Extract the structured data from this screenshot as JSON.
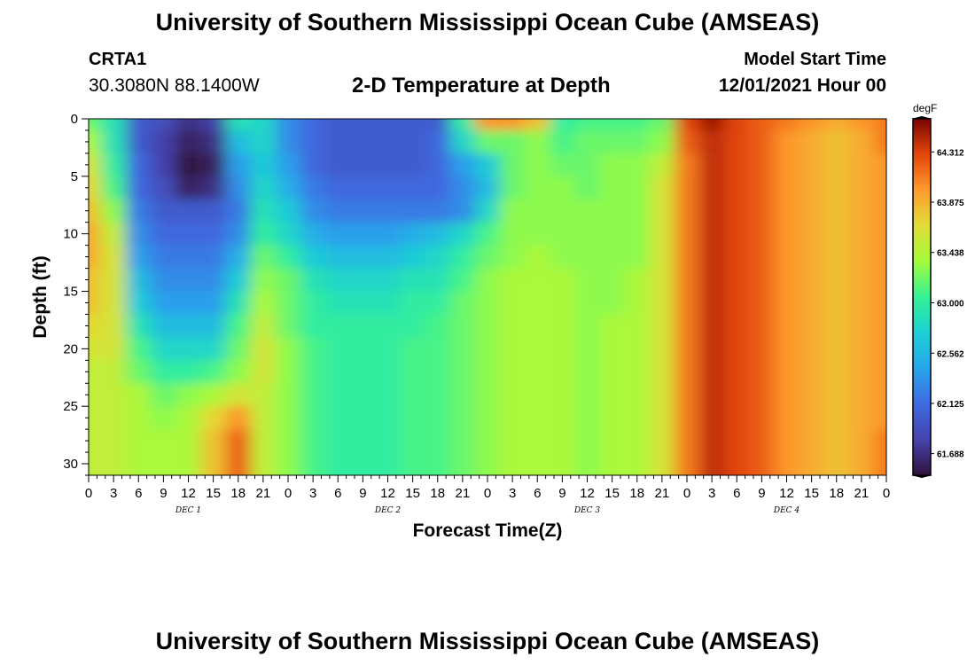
{
  "header": {
    "title": "University of Southern Mississippi Ocean Cube (AMSEAS)",
    "station_id": "CRTA1",
    "station_coords": "30.3080N  88.1400W",
    "subtitle": "2-D Temperature at Depth",
    "start_label": "Model Start Time",
    "start_value": "12/01/2021 Hour 00"
  },
  "footer": {
    "title": "University of Southern Mississippi Ocean Cube (AMSEAS)"
  },
  "chart_data": {
    "type": "heatmap",
    "title": "2-D Temperature at Depth",
    "xlabel": "Forecast Time(Z)",
    "ylabel": "Depth (ft)",
    "x_hours": [
      0,
      3,
      6,
      9,
      12,
      15,
      18,
      21,
      24,
      27,
      30,
      33,
      36,
      39,
      42,
      45,
      48,
      51,
      54,
      57,
      60,
      63,
      66,
      69,
      72,
      75,
      78,
      81,
      84,
      87,
      90,
      93,
      96
    ],
    "x_tick_labels": [
      "0",
      "3",
      "6",
      "9",
      "12",
      "15",
      "18",
      "21",
      "0",
      "3",
      "6",
      "9",
      "12",
      "15",
      "18",
      "21",
      "0",
      "3",
      "6",
      "9",
      "12",
      "15",
      "18",
      "21",
      "0",
      "3",
      "6",
      "9",
      "12",
      "15",
      "18",
      "21",
      "0"
    ],
    "day_labels": [
      {
        "text": "DEC 1",
        "hour": 12
      },
      {
        "text": "DEC 2",
        "hour": 36
      },
      {
        "text": "DEC 3",
        "hour": 60
      },
      {
        "text": "DEC 4",
        "hour": 84
      }
    ],
    "y_depths_ft": [
      0,
      2,
      4,
      6,
      8,
      10,
      12,
      14,
      16,
      18,
      20,
      22,
      24,
      26,
      28,
      30
    ],
    "y_ticks": [
      0,
      5,
      10,
      15,
      20,
      25,
      30
    ],
    "ylim": [
      31,
      0
    ],
    "xlim": [
      0,
      96
    ],
    "colorbar": {
      "unit": "degF",
      "ticks": [
        61.688,
        62.125,
        62.562,
        63.0,
        63.438,
        63.875,
        64.312
      ],
      "tick_labels": [
        "61.688",
        "62.125",
        "62.562",
        "63.000",
        "63.438",
        "63.875",
        "64.312"
      ],
      "range": [
        61.5,
        64.6
      ]
    },
    "temperature_degF": [
      [
        63.2,
        62.9,
        62.0,
        61.9,
        61.7,
        61.8,
        62.9,
        62.8,
        62.3,
        62.1,
        62.0,
        62.0,
        62.0,
        62.0,
        62.0,
        63.0,
        64.0,
        64.0,
        63.8,
        63.0,
        63.1,
        63.1,
        63.1,
        63.2,
        64.3,
        64.5,
        64.3,
        64.2,
        64.1,
        64.0,
        63.9,
        64.0,
        64.1
      ],
      [
        63.4,
        62.9,
        62.0,
        61.8,
        61.6,
        61.7,
        62.6,
        62.8,
        62.3,
        62.1,
        62.0,
        62.0,
        62.0,
        62.0,
        62.1,
        62.8,
        63.2,
        63.2,
        63.3,
        63.1,
        63.2,
        63.2,
        63.2,
        63.3,
        64.2,
        64.4,
        64.3,
        64.2,
        64.0,
        63.9,
        63.8,
        63.9,
        64.1
      ],
      [
        63.6,
        63.0,
        62.1,
        61.8,
        61.5,
        61.6,
        62.4,
        62.7,
        62.4,
        62.1,
        62.0,
        62.0,
        62.0,
        62.0,
        62.1,
        62.4,
        62.7,
        63.2,
        63.3,
        63.2,
        63.2,
        63.3,
        63.3,
        63.5,
        64.1,
        64.4,
        64.3,
        64.2,
        64.0,
        63.9,
        63.8,
        63.9,
        64.0
      ],
      [
        63.7,
        63.1,
        62.1,
        61.9,
        61.6,
        61.7,
        62.3,
        62.8,
        62.5,
        62.2,
        62.1,
        62.1,
        62.1,
        62.1,
        62.1,
        62.3,
        62.6,
        63.2,
        63.3,
        63.3,
        63.2,
        63.3,
        63.3,
        63.6,
        64.1,
        64.4,
        64.3,
        64.2,
        64.0,
        63.9,
        63.8,
        63.9,
        64.0
      ],
      [
        63.8,
        63.3,
        62.2,
        62.0,
        62.0,
        62.0,
        62.2,
        62.9,
        62.7,
        62.3,
        62.2,
        62.2,
        62.2,
        62.2,
        62.2,
        62.3,
        62.8,
        63.3,
        63.3,
        63.3,
        63.3,
        63.3,
        63.3,
        63.6,
        64.1,
        64.4,
        64.3,
        64.2,
        64.0,
        63.9,
        63.8,
        63.9,
        64.0
      ],
      [
        63.9,
        63.5,
        62.3,
        62.1,
        62.1,
        62.1,
        62.3,
        63.0,
        62.8,
        62.5,
        62.4,
        62.4,
        62.4,
        62.5,
        62.6,
        62.8,
        63.1,
        63.3,
        63.3,
        63.3,
        63.3,
        63.3,
        63.3,
        63.6,
        64.1,
        64.4,
        64.3,
        64.2,
        64.0,
        63.9,
        63.8,
        63.9,
        64.0
      ],
      [
        63.9,
        63.6,
        62.4,
        62.2,
        62.2,
        62.2,
        62.5,
        63.2,
        63.0,
        62.7,
        62.6,
        62.6,
        62.6,
        62.7,
        62.8,
        63.0,
        63.2,
        63.3,
        63.4,
        63.3,
        63.3,
        63.3,
        63.3,
        63.6,
        64.1,
        64.4,
        64.3,
        64.2,
        64.0,
        63.9,
        63.8,
        63.9,
        64.0
      ],
      [
        63.8,
        63.6,
        62.6,
        62.3,
        62.3,
        62.3,
        62.7,
        63.3,
        63.2,
        62.9,
        62.8,
        62.8,
        62.8,
        62.9,
        62.9,
        63.1,
        63.3,
        63.4,
        63.4,
        63.4,
        63.3,
        63.3,
        63.4,
        63.6,
        64.1,
        64.4,
        64.3,
        64.2,
        64.0,
        63.9,
        63.8,
        63.9,
        64.0
      ],
      [
        63.8,
        63.6,
        62.7,
        62.4,
        62.4,
        62.4,
        62.9,
        63.4,
        63.2,
        63.0,
        62.9,
        62.9,
        62.9,
        63.0,
        63.0,
        63.2,
        63.3,
        63.4,
        63.4,
        63.4,
        63.3,
        63.3,
        63.4,
        63.6,
        64.1,
        64.4,
        64.3,
        64.2,
        64.0,
        63.9,
        63.8,
        63.9,
        64.0
      ],
      [
        63.7,
        63.6,
        62.9,
        62.6,
        62.6,
        62.6,
        63.1,
        63.5,
        63.2,
        63.0,
        63.0,
        63.0,
        63.0,
        63.0,
        63.1,
        63.2,
        63.3,
        63.4,
        63.4,
        63.4,
        63.3,
        63.4,
        63.4,
        63.6,
        64.1,
        64.4,
        64.3,
        64.2,
        64.0,
        63.9,
        63.8,
        63.9,
        64.0
      ],
      [
        63.6,
        63.6,
        63.1,
        62.8,
        62.8,
        62.8,
        63.2,
        63.6,
        63.3,
        63.1,
        63.0,
        63.0,
        63.0,
        63.1,
        63.1,
        63.2,
        63.3,
        63.4,
        63.4,
        63.4,
        63.3,
        63.4,
        63.4,
        63.6,
        64.1,
        64.4,
        64.3,
        64.2,
        64.0,
        63.9,
        63.8,
        63.9,
        64.0
      ],
      [
        63.5,
        63.5,
        63.2,
        63.0,
        63.0,
        63.1,
        63.3,
        63.6,
        63.3,
        63.1,
        63.0,
        63.0,
        63.0,
        63.1,
        63.1,
        63.2,
        63.3,
        63.4,
        63.4,
        63.4,
        63.3,
        63.4,
        63.4,
        63.6,
        64.1,
        64.4,
        64.3,
        64.2,
        64.0,
        63.9,
        63.8,
        63.9,
        64.0
      ],
      [
        63.5,
        63.5,
        63.4,
        63.2,
        63.3,
        63.4,
        63.6,
        63.5,
        63.3,
        63.1,
        63.0,
        63.0,
        63.0,
        63.1,
        63.1,
        63.2,
        63.3,
        63.4,
        63.4,
        63.4,
        63.3,
        63.4,
        63.4,
        63.6,
        64.1,
        64.4,
        64.3,
        64.2,
        64.0,
        63.9,
        63.8,
        63.9,
        64.0
      ],
      [
        63.5,
        63.5,
        63.4,
        63.3,
        63.4,
        63.7,
        64.0,
        63.5,
        63.3,
        63.1,
        63.0,
        63.0,
        63.0,
        63.1,
        63.1,
        63.2,
        63.3,
        63.4,
        63.4,
        63.4,
        63.3,
        63.4,
        63.4,
        63.6,
        64.1,
        64.4,
        64.3,
        64.2,
        64.0,
        63.9,
        63.8,
        63.9,
        64.0
      ],
      [
        63.5,
        63.5,
        63.4,
        63.4,
        63.4,
        63.8,
        64.2,
        63.5,
        63.3,
        63.1,
        63.0,
        63.0,
        63.0,
        63.1,
        63.1,
        63.2,
        63.3,
        63.4,
        63.4,
        63.4,
        63.3,
        63.4,
        63.4,
        63.6,
        64.1,
        64.4,
        64.3,
        64.2,
        64.0,
        63.9,
        63.8,
        63.9,
        64.1
      ],
      [
        63.5,
        63.5,
        63.4,
        63.4,
        63.4,
        63.8,
        64.2,
        63.5,
        63.3,
        63.1,
        63.0,
        63.0,
        63.0,
        63.1,
        63.1,
        63.2,
        63.3,
        63.4,
        63.4,
        63.4,
        63.3,
        63.4,
        63.4,
        63.6,
        64.1,
        64.4,
        64.3,
        64.2,
        64.0,
        63.9,
        63.8,
        63.9,
        64.1
      ]
    ]
  }
}
